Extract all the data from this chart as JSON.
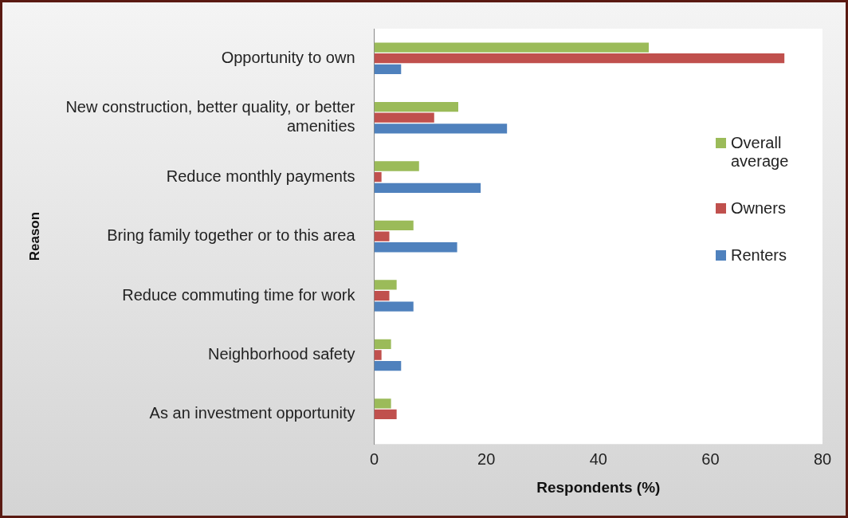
{
  "chart_data": {
    "type": "bar",
    "orientation": "horizontal",
    "xlabel": "Respondents (%)",
    "ylabel": "Reason",
    "categories": [
      "Opportunity to own",
      "New construction, better quality, or better amenities",
      "Reduce monthly payments",
      "Bring family together or to this area",
      "Reduce commuting time for work",
      "Neighborhood safety",
      "As an investment opportunity"
    ],
    "series": [
      {
        "name": "Overall average",
        "color": "#9bbb59",
        "values": [
          49,
          15,
          8,
          7,
          4,
          3,
          3
        ]
      },
      {
        "name": "Owners",
        "color": "#c0504d",
        "values": [
          73.2,
          10.7,
          1.3,
          2.7,
          2.7,
          1.3,
          4
        ]
      },
      {
        "name": "Renters",
        "color": "#4f81bd",
        "values": [
          4.8,
          23.7,
          19,
          14.8,
          7,
          4.8,
          null
        ]
      }
    ],
    "xlim": [
      0,
      80
    ],
    "xticks": [
      0,
      20,
      40,
      60,
      80
    ],
    "grid": false,
    "legend": "right"
  }
}
